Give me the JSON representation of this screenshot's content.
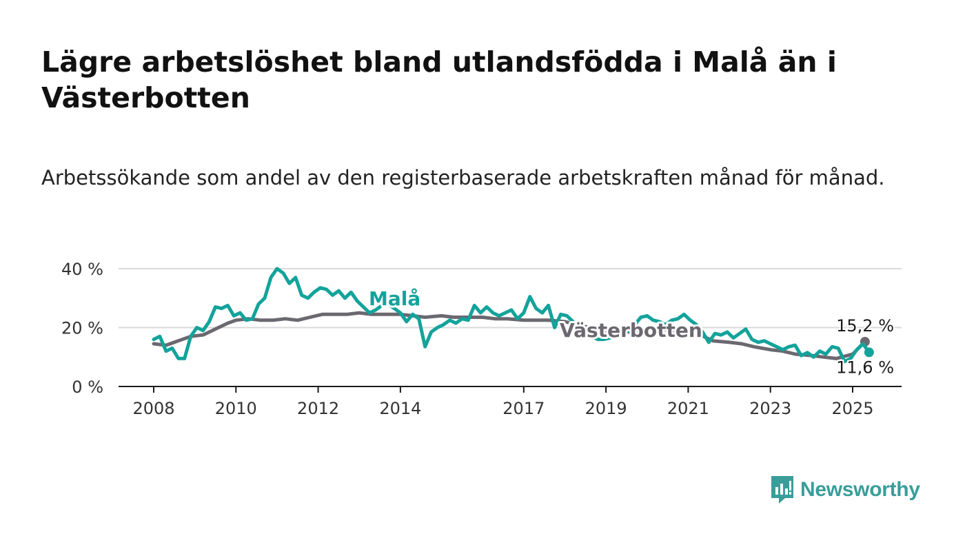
{
  "title": "Lägre arbetslöshet bland utlandsfödda i Malå än i Västerbotten",
  "subtitle": "Arbetssökande som andel av den registerbaserade arbetskraften månad för månad.",
  "brand": {
    "name": "Newsworthy",
    "icon": "newsworthy-logo-icon",
    "color": "#3a9d9a"
  },
  "chart_data": {
    "type": "line",
    "ylim": [
      0,
      40
    ],
    "y_ticks": [
      {
        "value": 0,
        "label": "0 %"
      },
      {
        "value": 20,
        "label": "20 %"
      },
      {
        "value": 40,
        "label": "40 %"
      }
    ],
    "xlim": [
      2008.0,
      2025.6
    ],
    "x_ticks": [
      {
        "value": 2008,
        "label": "2008"
      },
      {
        "value": 2010,
        "label": "2010"
      },
      {
        "value": 2012,
        "label": "2012"
      },
      {
        "value": 2014,
        "label": "2014"
      },
      {
        "value": 2017,
        "label": "2017"
      },
      {
        "value": 2019,
        "label": "2019"
      },
      {
        "value": 2021,
        "label": "2021"
      },
      {
        "value": 2023,
        "label": "2023"
      },
      {
        "value": 2025,
        "label": "2025"
      }
    ],
    "grid": true,
    "series": [
      {
        "name": "Västerbotten",
        "color": "#6b6870",
        "end_label": "15,2 %",
        "x": [
          2008.0,
          2008.3,
          2008.6,
          2008.9,
          2009.2,
          2009.5,
          2009.8,
          2010.0,
          2010.3,
          2010.6,
          2010.9,
          2011.2,
          2011.5,
          2011.8,
          2012.1,
          2012.4,
          2012.7,
          2013.0,
          2013.3,
          2013.6,
          2014.0,
          2014.3,
          2014.6,
          2015.0,
          2015.3,
          2015.6,
          2016.0,
          2016.3,
          2016.6,
          2017.0,
          2017.3,
          2017.6,
          2018.0,
          2018.3,
          2018.6,
          2019.0,
          2019.3,
          2019.6,
          2020.0,
          2020.3,
          2020.6,
          2021.0,
          2021.3,
          2021.6,
          2022.0,
          2022.3,
          2022.6,
          2023.0,
          2023.3,
          2023.6,
          2024.0,
          2024.3,
          2024.6,
          2025.0,
          2025.3
        ],
        "values": [
          14.5,
          14,
          15.5,
          17,
          17.5,
          19.5,
          21.5,
          22.5,
          23,
          22.5,
          22.5,
          23,
          22.5,
          23.5,
          24.5,
          24.5,
          24.5,
          25,
          24.5,
          24.5,
          24.5,
          24,
          23.5,
          24,
          23.5,
          23.5,
          23.5,
          23,
          23,
          22.5,
          22.5,
          22.5,
          22,
          21,
          20,
          18.5,
          18.5,
          18.5,
          19.5,
          19.5,
          19,
          19,
          17.5,
          15.5,
          15,
          14.5,
          13.5,
          12.5,
          12,
          11,
          10.5,
          10,
          9.5,
          11,
          15.2
        ]
      },
      {
        "name": "Malå",
        "color": "#13a39b",
        "end_label": "11,6 %",
        "x": [
          2008.0,
          2008.15,
          2008.3,
          2008.45,
          2008.6,
          2008.75,
          2008.9,
          2009.05,
          2009.2,
          2009.35,
          2009.5,
          2009.65,
          2009.8,
          2009.95,
          2010.1,
          2010.25,
          2010.4,
          2010.55,
          2010.7,
          2010.85,
          2011.0,
          2011.15,
          2011.3,
          2011.45,
          2011.6,
          2011.75,
          2011.9,
          2012.05,
          2012.2,
          2012.35,
          2012.5,
          2012.65,
          2012.8,
          2012.95,
          2013.1,
          2013.25,
          2013.4,
          2013.55,
          2013.7,
          2013.85,
          2014.0,
          2014.15,
          2014.3,
          2014.45,
          2014.6,
          2014.75,
          2014.9,
          2015.05,
          2015.2,
          2015.35,
          2015.5,
          2015.65,
          2015.8,
          2015.95,
          2016.1,
          2016.25,
          2016.4,
          2016.55,
          2016.7,
          2016.85,
          2017.0,
          2017.15,
          2017.3,
          2017.45,
          2017.6,
          2017.75,
          2017.9,
          2018.05,
          2018.2,
          2018.35,
          2018.5,
          2018.65,
          2018.8,
          2018.95,
          2019.1,
          2019.25,
          2019.4,
          2019.55,
          2019.7,
          2019.85,
          2020.0,
          2020.15,
          2020.3,
          2020.45,
          2020.6,
          2020.75,
          2020.9,
          2021.05,
          2021.2,
          2021.35,
          2021.5,
          2021.65,
          2021.8,
          2021.95,
          2022.1,
          2022.25,
          2022.4,
          2022.55,
          2022.7,
          2022.85,
          2023.0,
          2023.15,
          2023.3,
          2023.45,
          2023.6,
          2023.75,
          2023.9,
          2024.05,
          2024.2,
          2024.35,
          2024.5,
          2024.65,
          2024.8,
          2024.95,
          2025.1,
          2025.25,
          2025.4
        ],
        "values": [
          16,
          17,
          12,
          13,
          9.5,
          9.5,
          17,
          20,
          19,
          22,
          27,
          26.5,
          27.5,
          24,
          25,
          22.5,
          23,
          28,
          30,
          37,
          40,
          38.5,
          35,
          37,
          31,
          30,
          32,
          33.5,
          33,
          31,
          32.5,
          30,
          32,
          29,
          27,
          25,
          26,
          27.5,
          28,
          26.5,
          25,
          22,
          24.5,
          23,
          13.5,
          18.5,
          20,
          21,
          22.5,
          21.5,
          23,
          22.5,
          27.5,
          25,
          27,
          25,
          24,
          25,
          26,
          23,
          25,
          30.5,
          26.5,
          25,
          27.5,
          20,
          24.5,
          24,
          22,
          19,
          17.5,
          17,
          16,
          16,
          16.5,
          18,
          17.5,
          19,
          21,
          23.5,
          24,
          22.5,
          22,
          21,
          22.5,
          23,
          24.5,
          22.5,
          21,
          18.5,
          15,
          18,
          17.5,
          18.5,
          16.5,
          18,
          19.5,
          16,
          15,
          15.5,
          14.5,
          13.5,
          12.5,
          13.5,
          14,
          10.5,
          11.5,
          10,
          12,
          11,
          13.5,
          13,
          8.5,
          9.5,
          12.5,
          14.5,
          11.6
        ]
      }
    ]
  }
}
